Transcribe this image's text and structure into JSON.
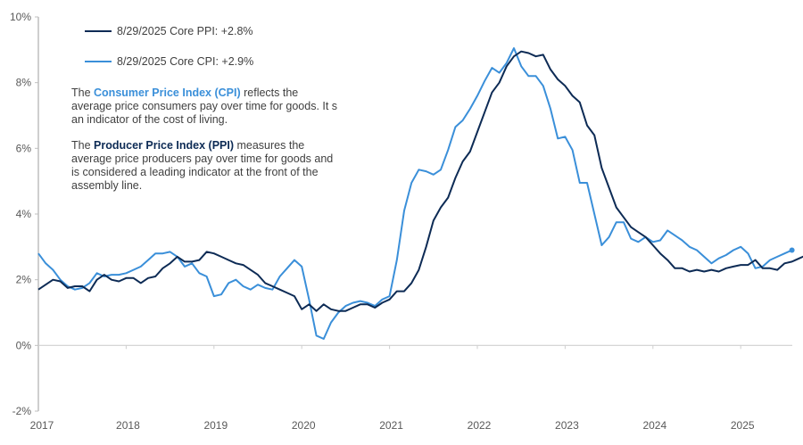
{
  "chart_data": {
    "type": "line",
    "title": "",
    "xlabel": "",
    "ylabel": "",
    "ylim": [
      -2,
      10
    ],
    "yticks": [
      -2,
      0,
      2,
      4,
      6,
      8,
      10
    ],
    "ytick_labels": [
      "-2%",
      "0%",
      "2%",
      "4%",
      "6%",
      "8%",
      "10%"
    ],
    "xlim": [
      2017.0,
      2025.9
    ],
    "xticks": [
      2017,
      2018,
      2019,
      2020,
      2021,
      2022,
      2023,
      2024,
      2025
    ],
    "xtick_labels": [
      "2017",
      "2018",
      "2019",
      "2020",
      "2021",
      "2022",
      "2023",
      "2024",
      "2025"
    ],
    "grid": false,
    "x_start": 2017.0,
    "x_step_months": 1,
    "legend_position": "top-left",
    "series": [
      {
        "name": "8/29/2025 Core PPI:  +2.8%",
        "color": "#0d2b55",
        "end_marker": true,
        "values": [
          1.7,
          1.85,
          2.0,
          1.95,
          1.75,
          1.8,
          1.8,
          1.65,
          2.0,
          2.15,
          2.0,
          1.95,
          2.05,
          2.05,
          1.9,
          2.05,
          2.1,
          2.35,
          2.5,
          2.7,
          2.55,
          2.55,
          2.6,
          2.85,
          2.8,
          2.7,
          2.6,
          2.5,
          2.45,
          2.3,
          2.15,
          1.9,
          1.8,
          1.7,
          1.6,
          1.5,
          1.1,
          1.25,
          1.05,
          1.25,
          1.1,
          1.05,
          1.05,
          1.15,
          1.25,
          1.25,
          1.15,
          1.3,
          1.4,
          1.65,
          1.65,
          1.9,
          2.3,
          3.0,
          3.8,
          4.2,
          4.5,
          5.1,
          5.6,
          5.9,
          6.5,
          7.1,
          7.7,
          8.0,
          8.5,
          8.8,
          8.95,
          8.9,
          8.8,
          8.85,
          8.4,
          8.1,
          7.9,
          7.6,
          7.4,
          6.7,
          6.4,
          5.4,
          4.8,
          4.2,
          3.9,
          3.6,
          3.45,
          3.3,
          3.05,
          2.8,
          2.6,
          2.35,
          2.35,
          2.25,
          2.3,
          2.25,
          2.3,
          2.25,
          2.35,
          2.4,
          2.45,
          2.45,
          2.6,
          2.35,
          2.35,
          2.3,
          2.5,
          2.55,
          2.65,
          2.75,
          2.8,
          2.8
        ]
      },
      {
        "name": "8/29/2025 Core CPI:  +2.9%",
        "color": "#3a8fd9",
        "end_marker": true,
        "values": [
          2.8,
          2.5,
          2.3,
          2.0,
          1.8,
          1.7,
          1.75,
          1.9,
          2.2,
          2.1,
          2.15,
          2.15,
          2.2,
          2.3,
          2.4,
          2.6,
          2.8,
          2.8,
          2.85,
          2.7,
          2.4,
          2.5,
          2.2,
          2.1,
          1.5,
          1.55,
          1.9,
          2.0,
          1.8,
          1.7,
          1.85,
          1.75,
          1.7,
          2.1,
          2.35,
          2.6,
          2.4,
          1.4,
          0.3,
          0.2,
          0.7,
          1.0,
          1.2,
          1.3,
          1.35,
          1.3,
          1.2,
          1.4,
          1.5,
          2.6,
          4.1,
          4.95,
          5.35,
          5.3,
          5.2,
          5.35,
          5.95,
          6.65,
          6.85,
          7.2,
          7.6,
          8.05,
          8.45,
          8.3,
          8.6,
          9.05,
          8.5,
          8.2,
          8.2,
          7.9,
          7.2,
          6.3,
          6.35,
          5.95,
          4.95,
          4.95,
          4.0,
          3.05,
          3.3,
          3.75,
          3.75,
          3.25,
          3.15,
          3.3,
          3.15,
          3.2,
          3.5,
          3.35,
          3.2,
          3.0,
          2.9,
          2.7,
          2.5,
          2.65,
          2.75,
          2.9,
          3.0,
          2.8,
          2.35,
          2.4,
          2.6,
          2.7,
          2.8,
          2.9
        ]
      }
    ]
  },
  "legend": {
    "items": [
      {
        "label": "8/29/2025 Core PPI:  +2.8%",
        "color": "#0d2b55"
      },
      {
        "label": "8/29/2025 Core CPI:  +2.9%",
        "color": "#3a8fd9"
      }
    ]
  },
  "annotations": {
    "cpi": {
      "prefix": "The ",
      "term": "Consumer Price Index (CPI)",
      "term_color": "#3a8fd9",
      "rest": " reflects the average price consumers pay over time for goods. It s an indicator of the cost of living."
    },
    "ppi": {
      "prefix": "The ",
      "term": "Producer Price Index (PPI)",
      "term_color": "#0d2b55",
      "rest": " measures the average price producers pay over time for goods and is considered a leading indicator at the front of the assembly line."
    }
  }
}
